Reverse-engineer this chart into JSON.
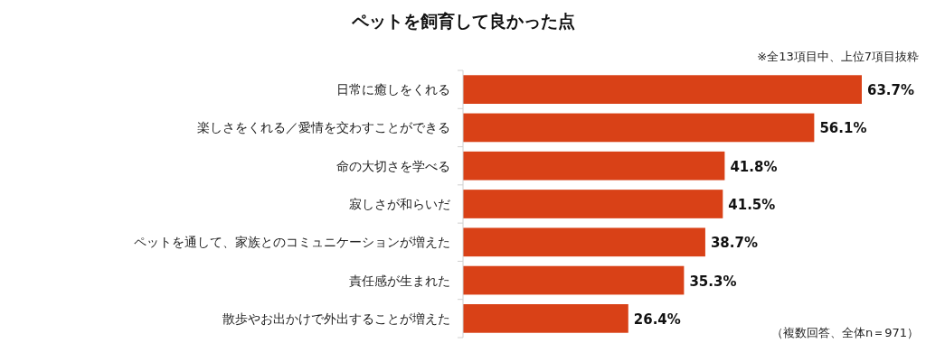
{
  "chart_data": {
    "type": "bar",
    "orientation": "horizontal",
    "title": "ペットを飼育して良かった点",
    "categories": [
      "日常に癒しをくれる",
      "楽しさをくれる／愛情を交わすことができる",
      "命の大切さを学べる",
      "寂しさが和らいだ",
      "ペットを通して、家族とのコミュニケーションが増えた",
      "責任感が生まれた",
      "散歩やお出かけで外出することが増えた"
    ],
    "values": [
      63.7,
      56.1,
      41.8,
      41.5,
      38.7,
      35.3,
      26.4
    ],
    "value_labels": [
      "63.7%",
      "56.1%",
      "41.8%",
      "41.5%",
      "38.7%",
      "35.3%",
      "26.4%"
    ],
    "color": "#d94117",
    "annotations": [
      "※全13項目中、上位7項目抜粋",
      "（複数回答、全体n＝971）"
    ]
  }
}
